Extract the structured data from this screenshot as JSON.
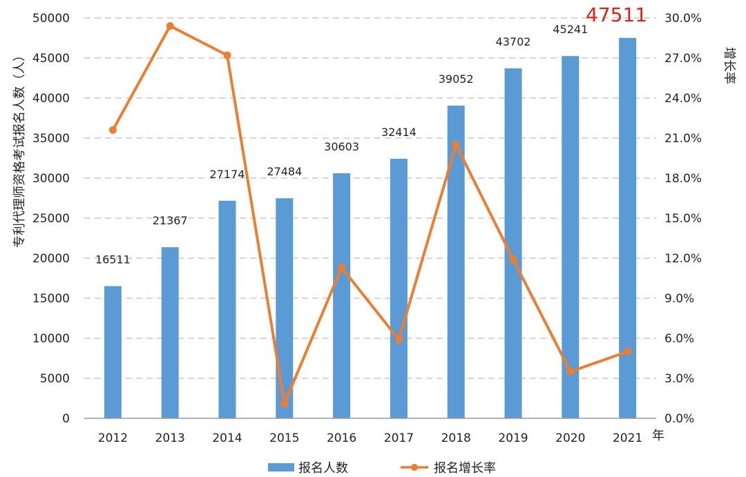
{
  "chart_data": {
    "type": "bar+line",
    "categories": [
      "2012",
      "2013",
      "2014",
      "2015",
      "2016",
      "2017",
      "2018",
      "2019",
      "2020",
      "2021"
    ],
    "series": [
      {
        "name": "报名人数",
        "type": "bar",
        "axis": "left",
        "color": "#5b9bd5",
        "values": [
          16511,
          21367,
          27174,
          27484,
          30603,
          32414,
          39052,
          43702,
          45241,
          47511
        ],
        "labels": [
          "16511",
          "21367",
          "27174",
          "27484",
          "30603",
          "32414",
          "39052",
          "43702",
          "45241",
          "47511"
        ],
        "highlight_index": 9,
        "highlight_color": "#e0201a"
      },
      {
        "name": "报名增长率",
        "type": "line",
        "axis": "right",
        "color": "#ed7d31",
        "values": [
          21.6,
          29.4,
          27.2,
          1.1,
          11.3,
          5.9,
          20.5,
          11.9,
          3.5,
          5.0
        ]
      }
    ],
    "xlabel": "年",
    "ylabel": "专利代理师资格考试报名人数（人）",
    "y2label": "增长率",
    "ylim": [
      0,
      50000
    ],
    "yticks": [
      "0",
      "5000",
      "10000",
      "15000",
      "20000",
      "25000",
      "30000",
      "35000",
      "40000",
      "45000",
      "50000"
    ],
    "y2lim": [
      0,
      30
    ],
    "y2ticks": [
      "0.0%",
      "3.0%",
      "6.0%",
      "9.0%",
      "12.0%",
      "15.0%",
      "18.0%",
      "21.0%",
      "24.0%",
      "27.0%",
      "30.0%"
    ],
    "grid": true,
    "legend_position": "bottom"
  }
}
